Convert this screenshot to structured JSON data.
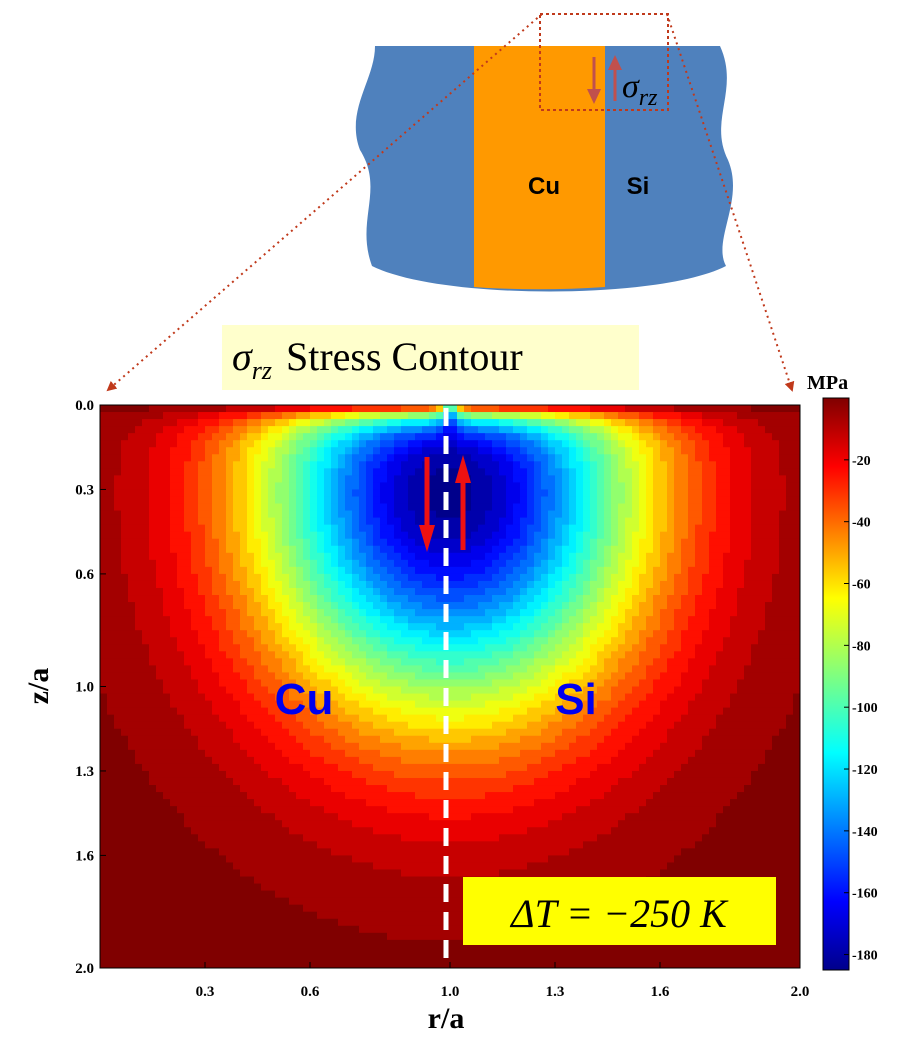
{
  "schematic": {
    "copper_label": "Cu",
    "silicon_label": "Si",
    "stress_symbol": "σ",
    "stress_subscript": "rz",
    "colors": {
      "silicon": "#4f81bd",
      "copper": "#ff9900",
      "arrow_red": "#c0504d",
      "zoom_box": "#c0391b"
    }
  },
  "title_box": {
    "symbol": "σ",
    "subscript": "rz",
    "text": "Stress Contour",
    "background": "#ffffcc"
  },
  "annotation": {
    "text": "ΔT = −250 K",
    "background": "#ffff00"
  },
  "region_labels": {
    "left": "Cu",
    "right": "Si",
    "color": "#0000ee"
  },
  "colorbar": {
    "unit": "MPa",
    "ticks": [
      "-20",
      "-40",
      "-60",
      "-80",
      "-100",
      "-120",
      "-140",
      "-160",
      "-180"
    ],
    "tick_values": [
      -20,
      -40,
      -60,
      -80,
      -100,
      -120,
      -140,
      -160,
      -180
    ],
    "range": [
      -185,
      0
    ]
  },
  "chart_data": {
    "type": "heatmap",
    "title": "σrz Stress Contour",
    "xlabel": "r/a",
    "ylabel": "z/a",
    "x_ticks": [
      "0.3",
      "0.6",
      "1.0",
      "1.3",
      "1.6",
      "2.0"
    ],
    "x_tick_values": [
      0.3,
      0.6,
      1.0,
      1.3,
      1.6,
      2.0
    ],
    "y_ticks": [
      "0.0",
      "0.3",
      "0.6",
      "1.0",
      "1.3",
      "1.6",
      "2.0"
    ],
    "y_tick_values": [
      0.0,
      0.3,
      0.6,
      1.0,
      1.3,
      1.6,
      2.0
    ],
    "xlim": [
      0.0,
      2.0
    ],
    "ylim": [
      0.0,
      2.0
    ],
    "y_axis_inverted": true,
    "interface_r": 1.0,
    "value_range": [
      -185,
      0
    ],
    "unit": "MPa",
    "min_value_location": {
      "r": 1.0,
      "z": 0.3,
      "value": -185
    }
  }
}
